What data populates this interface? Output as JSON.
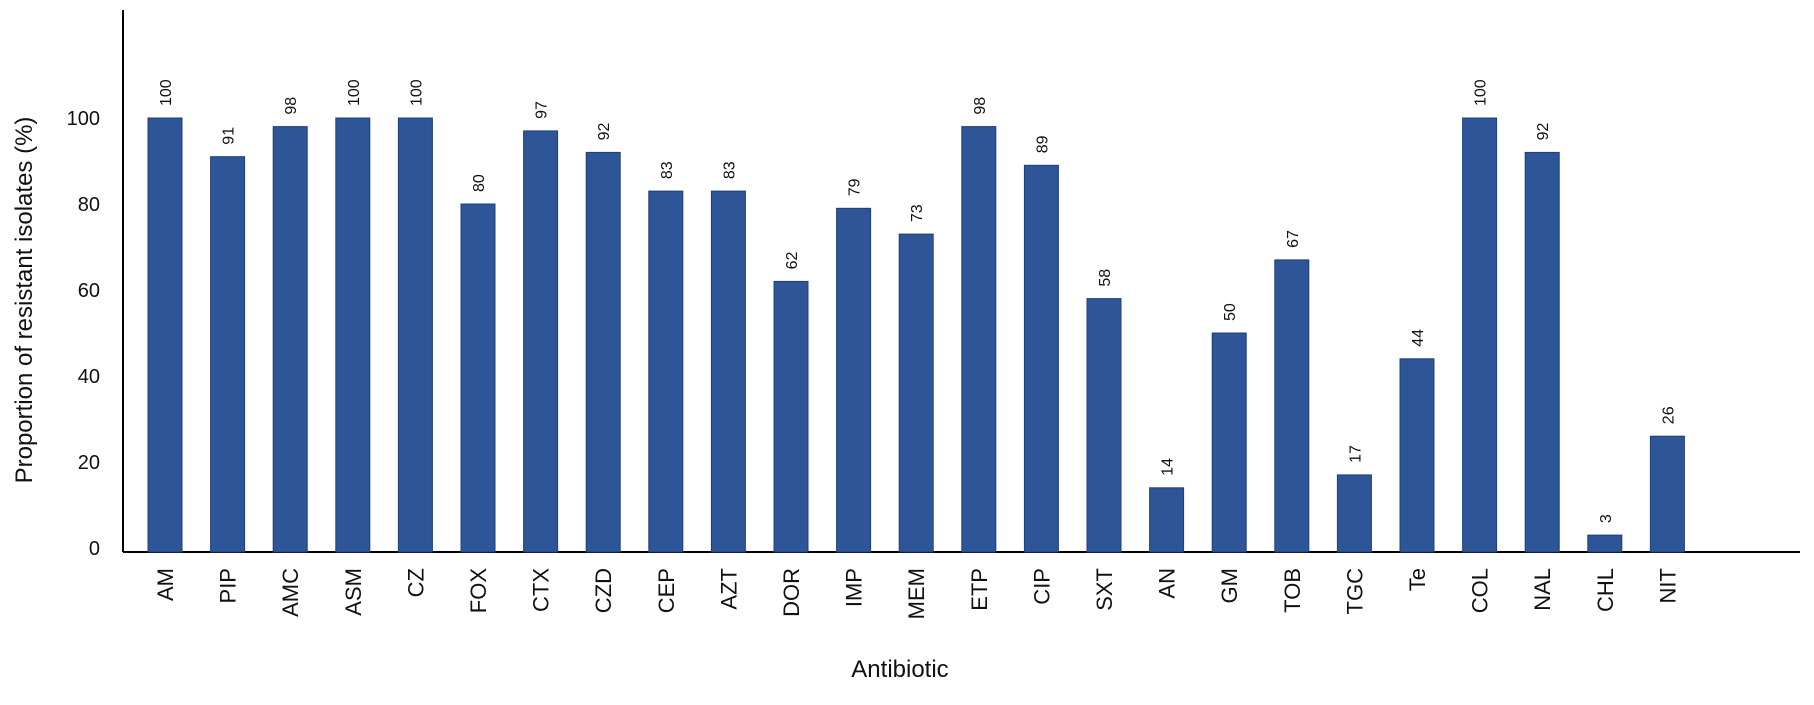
{
  "chart_data": {
    "type": "bar",
    "title": "",
    "xlabel": "Antibiotic",
    "ylabel": "Proportion of resistant isolates (%)",
    "ylim": [
      0,
      100
    ],
    "y_ticks": [
      0,
      20,
      40,
      60,
      80,
      100
    ],
    "grid": false,
    "categories": [
      "AM",
      "PIP",
      "AMC",
      "ASM",
      "CZ",
      "FOX",
      "CTX",
      "CZD",
      "CEP",
      "AZT",
      "DOR",
      "IMP",
      "MEM",
      "ETP",
      "CIP",
      "SXT",
      "AN",
      "GM",
      "TOB",
      "TGC",
      "Te",
      "COL",
      "NAL",
      "CHL",
      "NIT"
    ],
    "values": [
      100,
      91,
      98,
      100,
      100,
      80,
      97,
      92,
      83,
      83,
      62,
      79,
      73,
      98,
      89,
      58,
      14,
      50,
      67,
      17,
      44,
      100,
      92,
      3,
      26
    ],
    "data_labels": [
      "100",
      "91",
      "98",
      "100",
      "100",
      "80",
      "97",
      "92",
      "83",
      "83",
      "62",
      "79",
      "73",
      "98",
      "89",
      "58",
      "14",
      "50",
      "67",
      "17",
      "44",
      "100",
      "92",
      "3",
      "26"
    ],
    "colors": {
      "bar": "#2E5597",
      "bar_edge": "#1F3F78",
      "axis": "#000000"
    }
  }
}
